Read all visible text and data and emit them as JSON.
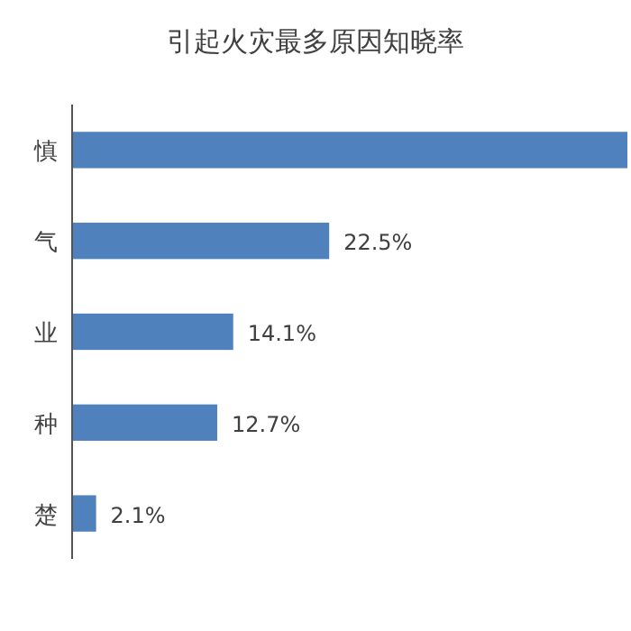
{
  "chart_data": {
    "type": "bar",
    "orientation": "horizontal",
    "title": "引起火灾最多原因知晓率",
    "categories": [
      "慎",
      "气",
      "业",
      "种",
      "楚"
    ],
    "values": [
      48.6,
      22.5,
      14.1,
      12.7,
      2.1
    ],
    "value_labels": [
      null,
      "22.5%",
      "14.1%",
      "12.7%",
      "2.1%"
    ],
    "color": "#4f81bd"
  }
}
